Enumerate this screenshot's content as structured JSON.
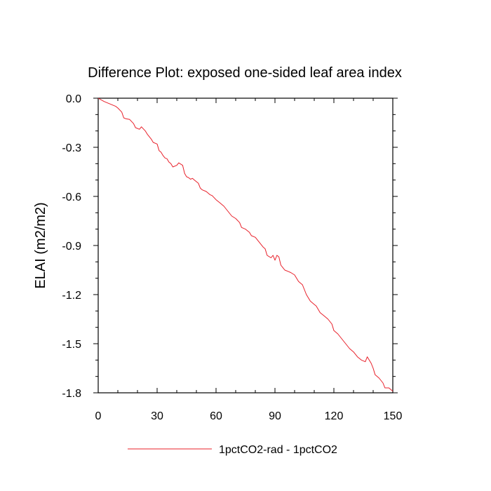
{
  "chart_data": {
    "type": "line",
    "title": "Difference Plot: exposed one-sided leaf area index",
    "xlabel": "",
    "ylabel": "ELAI  (m2/m2)",
    "xlim": [
      0,
      150
    ],
    "ylim": [
      -1.8,
      0.0
    ],
    "xticks": [
      0,
      30,
      60,
      90,
      120,
      150
    ],
    "xtick_labels": [
      "0",
      "30",
      "60",
      "90",
      "120",
      "150"
    ],
    "yticks": [
      0.0,
      -0.3,
      -0.6,
      -0.9,
      -1.2,
      -1.5,
      -1.8
    ],
    "ytick_labels": [
      "0.0",
      "-0.3",
      "-0.6",
      "-0.9",
      "-1.2",
      "-1.5",
      "-1.8"
    ],
    "grid": false,
    "legend_position": "bottom-center",
    "series": [
      {
        "name": "1pctCO2-rad - 1pctCO2",
        "color": "#e8202a",
        "x": [
          0,
          3,
          6,
          9,
          10,
          12,
          13,
          14,
          16,
          18,
          19,
          21,
          22,
          24,
          25,
          27,
          28,
          30,
          31,
          32,
          33,
          34,
          35,
          36,
          37,
          38,
          40,
          41,
          43,
          44,
          45,
          46,
          47,
          48,
          49,
          51,
          52,
          53,
          55,
          57,
          58,
          60,
          62,
          64,
          66,
          68,
          70,
          72,
          73,
          75,
          77,
          78,
          80,
          82,
          84,
          85,
          86,
          88,
          89,
          90,
          91,
          92,
          93,
          95,
          97,
          98,
          100,
          102,
          104,
          105,
          106,
          108,
          110,
          111,
          113,
          115,
          117,
          119,
          120,
          122,
          124,
          126,
          128,
          130,
          132,
          134,
          136,
          137,
          139,
          140,
          141,
          143,
          145,
          146,
          148,
          150
        ],
        "y": [
          0.0,
          -0.02,
          -0.035,
          -0.05,
          -0.06,
          -0.085,
          -0.12,
          -0.125,
          -0.13,
          -0.155,
          -0.18,
          -0.19,
          -0.175,
          -0.2,
          -0.22,
          -0.25,
          -0.27,
          -0.28,
          -0.32,
          -0.33,
          -0.35,
          -0.365,
          -0.37,
          -0.39,
          -0.4,
          -0.42,
          -0.41,
          -0.395,
          -0.41,
          -0.46,
          -0.48,
          -0.485,
          -0.495,
          -0.49,
          -0.5,
          -0.52,
          -0.55,
          -0.56,
          -0.57,
          -0.59,
          -0.595,
          -0.62,
          -0.64,
          -0.66,
          -0.69,
          -0.72,
          -0.735,
          -0.76,
          -0.79,
          -0.8,
          -0.82,
          -0.84,
          -0.85,
          -0.88,
          -0.91,
          -0.92,
          -0.96,
          -0.975,
          -0.96,
          -0.99,
          -0.96,
          -0.97,
          -1.02,
          -1.05,
          -1.06,
          -1.065,
          -1.08,
          -1.12,
          -1.14,
          -1.17,
          -1.2,
          -1.24,
          -1.26,
          -1.27,
          -1.31,
          -1.33,
          -1.35,
          -1.38,
          -1.42,
          -1.44,
          -1.47,
          -1.5,
          -1.53,
          -1.55,
          -1.58,
          -1.6,
          -1.61,
          -1.58,
          -1.62,
          -1.65,
          -1.69,
          -1.71,
          -1.74,
          -1.77,
          -1.77,
          -1.79
        ]
      }
    ]
  }
}
